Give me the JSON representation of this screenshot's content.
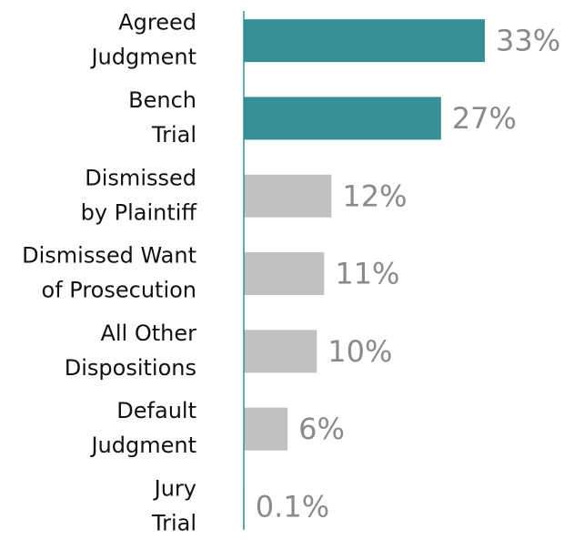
{
  "chart_data": {
    "type": "bar",
    "orientation": "horizontal",
    "categories": [
      [
        "Agreed",
        "Judgment"
      ],
      [
        "Bench",
        "Trial"
      ],
      [
        "Dismissed",
        "by Plaintiff"
      ],
      [
        "Dismissed Want",
        "of Prosecution"
      ],
      [
        "All Other",
        "Dispositions"
      ],
      [
        "Default",
        "Judgment"
      ],
      [
        "Jury",
        "Trial"
      ]
    ],
    "values": [
      33,
      27,
      12,
      11,
      10,
      6,
      0.1
    ],
    "value_labels": [
      "33%",
      "27%",
      "12%",
      "11%",
      "10%",
      "6%",
      "0.1%"
    ],
    "colors": [
      "#388f96",
      "#388f96",
      "#c0c0c0",
      "#c0c0c0",
      "#c0c0c0",
      "#c0c0c0",
      "#c0c0c0"
    ],
    "axis_color": "#388f96"
  }
}
